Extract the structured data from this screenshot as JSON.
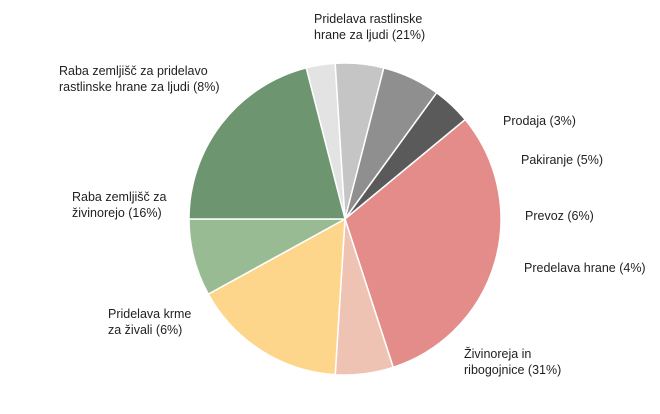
{
  "chart_data": {
    "type": "pie",
    "title": "",
    "start_angle_deg": -14.4,
    "direction": "clockwise",
    "slices": [
      {
        "label_lines": [
          "Prodaja (3%)"
        ],
        "value": 3,
        "color": "#e3e3e3"
      },
      {
        "label_lines": [
          "Pakiranje (5%)"
        ],
        "value": 5,
        "color": "#c5c5c5"
      },
      {
        "label_lines": [
          "Prevoz (6%)"
        ],
        "value": 6,
        "color": "#8f8f8f"
      },
      {
        "label_lines": [
          "Predelava hrane (4%)"
        ],
        "value": 4,
        "color": "#5a5a5a"
      },
      {
        "label_lines": [
          "Živinoreja in",
          "ribogojnice (31%)"
        ],
        "value": 31,
        "color": "#e38c8a"
      },
      {
        "label_lines": [
          "Pridelava krme",
          "za živali (6%)"
        ],
        "value": 6,
        "color": "#efc3b3"
      },
      {
        "label_lines": [
          "Raba zemljišč za",
          "živinorejo (16%)"
        ],
        "value": 16,
        "color": "#fdd68c"
      },
      {
        "label_lines": [
          "Raba zemljišč za pridelavo",
          "rastlinske hrane za ljudi (8%)"
        ],
        "value": 8,
        "color": "#99bb93"
      },
      {
        "label_lines": [
          "Pridelava rastlinske",
          "hrane za ljudi (21%)"
        ],
        "value": 21,
        "color": "#6c9570"
      }
    ]
  }
}
